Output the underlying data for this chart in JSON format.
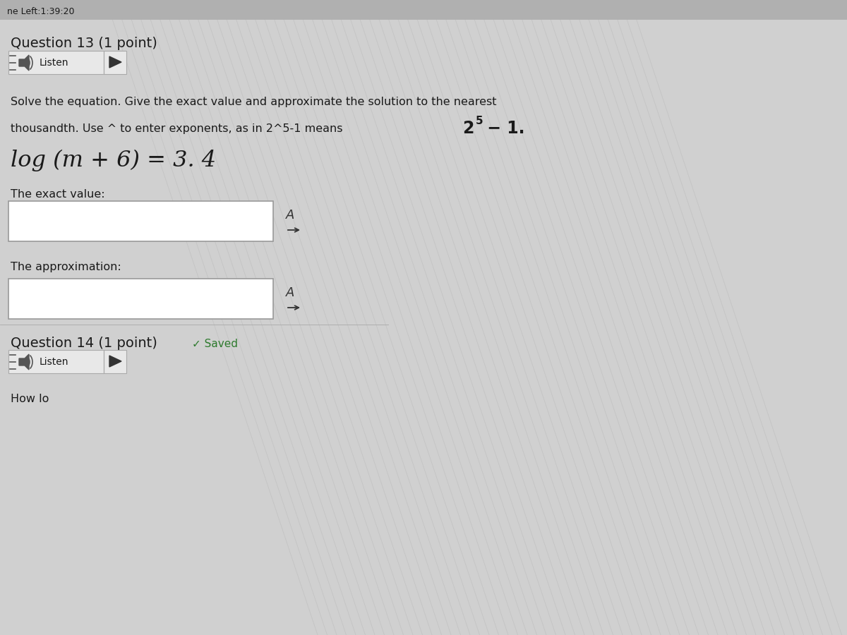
{
  "background_color": "#d0d0d0",
  "top_bar_text": "ne Left:1:39:20",
  "top_bar_color": "#b0b0b0",
  "question13_title": "Question 13 (1 point)",
  "listen_button_text": "Listen",
  "instruction_line1": "Solve the equation. Give the exact value and approximate the solution to the nearest",
  "instruction_line2": "thousandth. Use ^ to enter exponents, as in 2^5-1 means ",
  "instruction_line2b": " − 1.",
  "superscript_text": "5",
  "base_text": "2",
  "equation": "log (m + 6) = 3. 4",
  "exact_value_label": "The exact value:",
  "approximation_label": "The approximation:",
  "question14_title": "Question 14 (1 point)",
  "saved_text": "✓ Saved",
  "how_text": "How lo",
  "input_box_color": "#ffffff",
  "input_box_border": "#999999",
  "text_color": "#1a1a1a",
  "header_bg": "#c8c8c8",
  "button_bg": "#e8e8e8",
  "button_border": "#aaaaaa",
  "arrow_color": "#2d6b9e",
  "striped_bg_color": "#c8c8c8",
  "saved_color": "#2d7a2d",
  "speaker_color": "#555555",
  "triangle_color": "#333333"
}
